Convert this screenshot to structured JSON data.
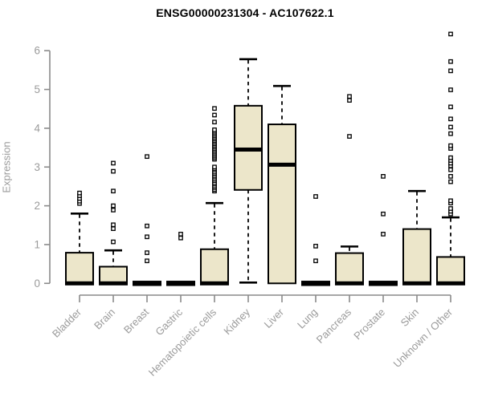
{
  "title": "ENSG00000231304 - AC107622.1",
  "colors": {
    "box_fill": "#ece6ca",
    "box_border": "#000000",
    "median": "#000000",
    "axis": "#8a8a8a",
    "tick_label": "#9b9b9b",
    "title": "#000000",
    "outlier_fill": "#ffffff"
  },
  "chart_data": {
    "type": "boxplot",
    "title": "ENSG00000231304 - AC107622.1",
    "xlabel": "",
    "ylabel": "Expression",
    "ylim": [
      0,
      6.5
    ],
    "yticks": [
      0,
      1,
      2,
      3,
      4,
      5,
      6
    ],
    "grid": false,
    "legend": "none",
    "categories": [
      "Bladder",
      "Brain",
      "Breast",
      "Gastric",
      "Hematopoietic cells",
      "Kidney",
      "Liver",
      "Lung",
      "Pancreas",
      "Prostate",
      "Skin",
      "Unknown / Other"
    ],
    "series": [
      {
        "name": "Bladder",
        "whisker_low": 0,
        "q1": 0,
        "median": 0,
        "q3": 0.79,
        "whisker_high": 1.8,
        "outliers": [
          2.06,
          2.12,
          2.19,
          2.26,
          2.33
        ]
      },
      {
        "name": "Brain",
        "whisker_low": 0,
        "q1": 0,
        "median": 0,
        "q3": 0.43,
        "whisker_high": 0.85,
        "outliers": [
          1.07,
          1.41,
          1.51,
          1.89,
          2.0,
          2.38,
          2.89,
          3.1
        ]
      },
      {
        "name": "Breast",
        "whisker_low": 0,
        "q1": 0,
        "median": 0,
        "q3": 0,
        "whisker_high": 0,
        "outliers": [
          0.58,
          0.79,
          1.2,
          1.48,
          3.27
        ]
      },
      {
        "name": "Gastric",
        "whisker_low": 0,
        "q1": 0,
        "median": 0,
        "q3": 0,
        "whisker_high": 0,
        "outliers": [
          1.17,
          1.27
        ]
      },
      {
        "name": "Hematopoietic cells",
        "whisker_low": 0,
        "q1": 0,
        "median": 0,
        "q3": 0.88,
        "whisker_high": 2.07,
        "outliers": [
          2.38,
          2.42,
          2.47,
          2.51,
          2.56,
          2.6,
          2.65,
          2.69,
          2.74,
          2.78,
          2.83,
          2.87,
          2.92,
          2.96,
          3.0,
          3.2,
          3.24,
          3.28,
          3.32,
          3.36,
          3.4,
          3.44,
          3.48,
          3.52,
          3.56,
          3.6,
          3.64,
          3.68,
          3.72,
          3.76,
          3.8,
          3.84,
          3.88,
          3.92,
          3.96,
          4.16,
          4.34,
          4.51
        ]
      },
      {
        "name": "Kidney",
        "whisker_low": 0.02,
        "q1": 2.41,
        "median": 3.45,
        "q3": 4.58,
        "whisker_high": 5.78,
        "outliers": []
      },
      {
        "name": "Liver",
        "whisker_low": 0,
        "q1": 0,
        "median": 3.06,
        "q3": 4.1,
        "whisker_high": 5.09,
        "outliers": []
      },
      {
        "name": "Lung",
        "whisker_low": 0,
        "q1": 0,
        "median": 0,
        "q3": 0,
        "whisker_high": 0,
        "outliers": [
          0.58,
          0.96,
          2.24
        ]
      },
      {
        "name": "Pancreas",
        "whisker_low": 0,
        "q1": 0,
        "median": 0,
        "q3": 0.78,
        "whisker_high": 0.95,
        "outliers": [
          3.79,
          4.72,
          4.82
        ]
      },
      {
        "name": "Prostate",
        "whisker_low": 0,
        "q1": 0,
        "median": 0,
        "q3": 0,
        "whisker_high": 0,
        "outliers": [
          1.27,
          1.79,
          2.76
        ]
      },
      {
        "name": "Skin",
        "whisker_low": 0,
        "q1": 0,
        "median": 0,
        "q3": 1.4,
        "whisker_high": 2.38,
        "outliers": []
      },
      {
        "name": "Unknown / Other",
        "whisker_low": 0,
        "q1": 0,
        "median": 0,
        "q3": 0.68,
        "whisker_high": 1.7,
        "outliers": [
          1.79,
          1.86,
          1.93,
          2.07,
          2.13,
          2.62,
          2.76,
          2.93,
          3.03,
          3.1,
          3.17,
          3.24,
          3.48,
          3.55,
          3.86,
          4.03,
          4.24,
          4.55,
          4.99,
          5.48,
          5.72,
          6.43
        ]
      }
    ]
  }
}
